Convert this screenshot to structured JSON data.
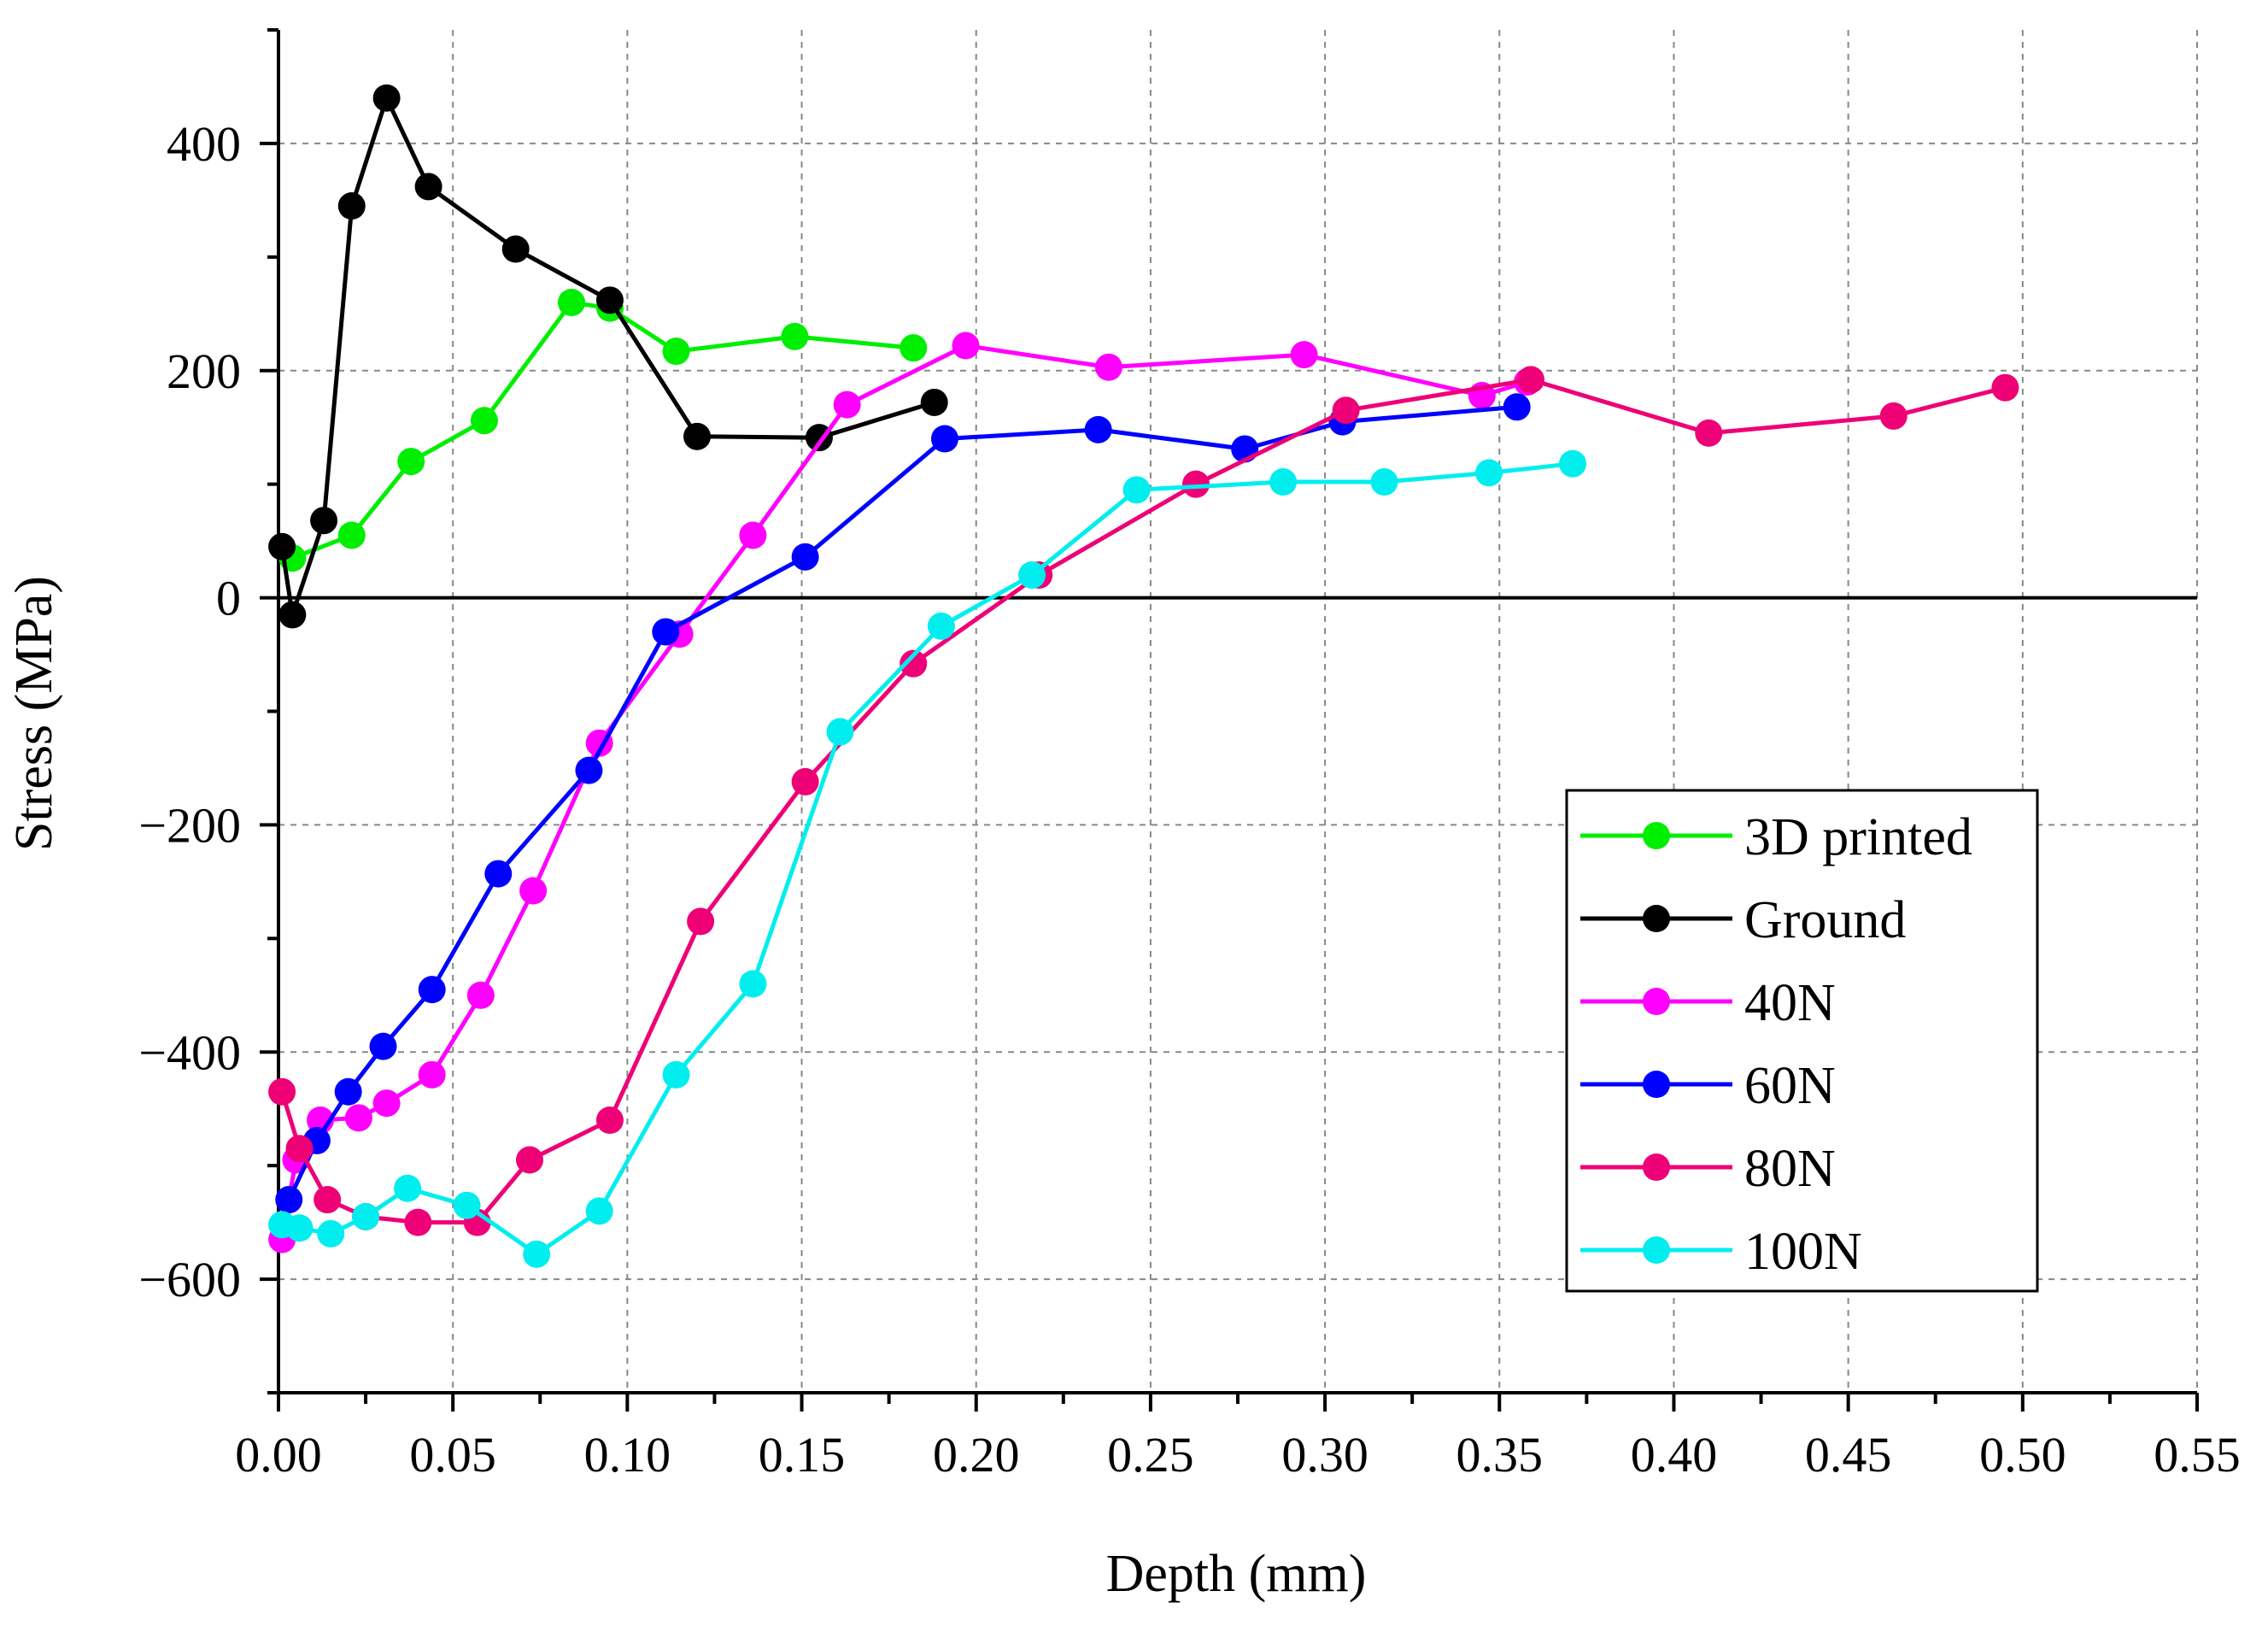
{
  "chart_data": {
    "type": "line",
    "title": "",
    "xlabel": "Depth (mm)",
    "ylabel": "Stress (MPa)",
    "xlim": [
      0,
      0.55
    ],
    "ylim": [
      -700,
      500
    ],
    "xticks": [
      0,
      0.05,
      0.1,
      0.15,
      0.2,
      0.25,
      0.3,
      0.35,
      0.4,
      0.45,
      0.5,
      0.55
    ],
    "xtick_labels": [
      "0.00",
      "0.05",
      "0.10",
      "0.15",
      "0.20",
      "0.25",
      "0.30",
      "0.35",
      "0.40",
      "0.45",
      "0.50",
      "0.55"
    ],
    "yticks": [
      -600,
      -400,
      -200,
      0,
      200,
      400
    ],
    "ytick_labels": [
      "−600",
      "−400",
      "−200",
      "0",
      "200",
      "400"
    ],
    "grid": true,
    "legend_position": "bottom-right",
    "zero_line": true,
    "series": [
      {
        "name": "3D printed",
        "color": "#00ee00",
        "x": [
          0.004,
          0.021,
          0.038,
          0.059,
          0.084,
          0.095,
          0.114,
          0.148,
          0.182
        ],
        "y": [
          35,
          55,
          120,
          156,
          260,
          255,
          217,
          230,
          220
        ]
      },
      {
        "name": "Ground",
        "color": "#000000",
        "x": [
          0.001,
          0.004,
          0.013,
          0.021,
          0.031,
          0.043,
          0.068,
          0.095,
          0.12,
          0.155,
          0.188
        ],
        "y": [
          45,
          -15,
          68,
          345,
          440,
          362,
          307,
          262,
          142,
          141,
          172
        ]
      },
      {
        "name": "40N",
        "color": "#ff00ff",
        "x": [
          0.001,
          0.005,
          0.012,
          0.023,
          0.031,
          0.044,
          0.058,
          0.073,
          0.092,
          0.115,
          0.136,
          0.163,
          0.197,
          0.238,
          0.294,
          0.345,
          0.358
        ],
        "y": [
          -565,
          -495,
          -460,
          -458,
          -445,
          -420,
          -350,
          -258,
          -128,
          -32,
          55,
          170,
          222,
          203,
          214,
          178,
          190
        ]
      },
      {
        "name": "60N",
        "color": "#0000ff",
        "x": [
          0.003,
          0.011,
          0.02,
          0.03,
          0.044,
          0.063,
          0.089,
          0.111,
          0.151,
          0.191,
          0.235,
          0.277,
          0.305,
          0.355
        ],
        "y": [
          -530,
          -478,
          -435,
          -395,
          -345,
          -243,
          -152,
          -30,
          36,
          140,
          148,
          131,
          155,
          168
        ]
      },
      {
        "name": "80N",
        "color": "#ee0077",
        "x": [
          0.001,
          0.006,
          0.014,
          0.025,
          0.04,
          0.057,
          0.072,
          0.095,
          0.121,
          0.151,
          0.182,
          0.218,
          0.263,
          0.306,
          0.359,
          0.41,
          0.463,
          0.495
        ],
        "y": [
          -435,
          -485,
          -530,
          -545,
          -550,
          -550,
          -495,
          -460,
          -285,
          -162,
          -58,
          20,
          100,
          165,
          192,
          145,
          160,
          185
        ]
      },
      {
        "name": "100N",
        "color": "#00eeee",
        "x": [
          0.001,
          0.006,
          0.015,
          0.025,
          0.037,
          0.054,
          0.074,
          0.092,
          0.114,
          0.136,
          0.161,
          0.19,
          0.216,
          0.246,
          0.288,
          0.317,
          0.347,
          0.371
        ],
        "y": [
          -552,
          -555,
          -560,
          -545,
          -520,
          -535,
          -578,
          -540,
          -420,
          -340,
          -118,
          -25,
          20,
          95,
          102,
          102,
          110,
          118
        ]
      }
    ]
  }
}
